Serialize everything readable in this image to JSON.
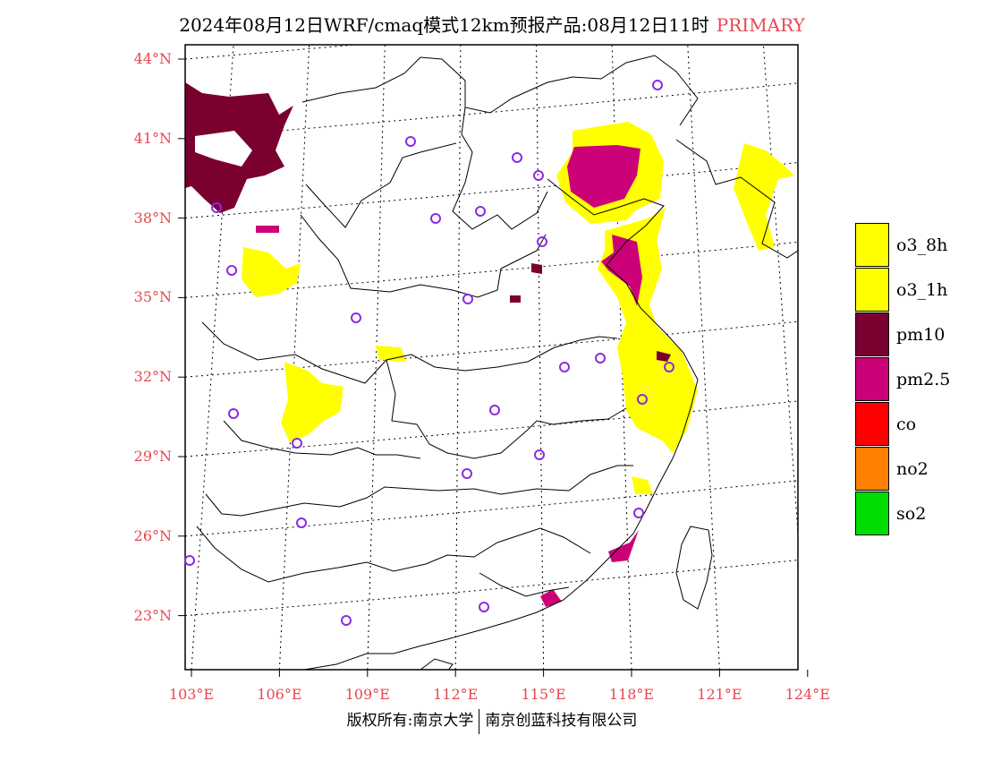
{
  "title": {
    "main": "2024年08月12日WRF/cmaq模式12km预报产品:08月12日11时",
    "label": "PRIMARY",
    "label_color": "#e8464f"
  },
  "axes": {
    "lat_labels": [
      "44°N",
      "41°N",
      "38°N",
      "35°N",
      "32°N",
      "29°N",
      "26°N",
      "23°N"
    ],
    "lat_values": [
      44,
      41,
      38,
      35,
      32,
      29,
      26,
      23
    ],
    "lon_labels": [
      "103°E",
      "106°E",
      "109°E",
      "112°E",
      "115°E",
      "118°E",
      "121°E",
      "124°E"
    ],
    "lon_values": [
      103,
      106,
      109,
      112,
      115,
      118,
      121,
      124
    ],
    "label_color": "#e8464f"
  },
  "legend": {
    "items": [
      {
        "label": "o3_8h",
        "color": "#ffff00"
      },
      {
        "label": "o3_1h",
        "color": "#ffff00"
      },
      {
        "label": "pm10",
        "color": "#7a0030"
      },
      {
        "label": "pm2.5",
        "color": "#cc0077"
      },
      {
        "label": "co",
        "color": "#ff0000"
      },
      {
        "label": "no2",
        "color": "#ff7f00"
      },
      {
        "label": "so2",
        "color": "#00dd00"
      }
    ]
  },
  "footer": {
    "left": "版权所有:南京大学",
    "right": "南京创蓝科技有限公司"
  }
}
